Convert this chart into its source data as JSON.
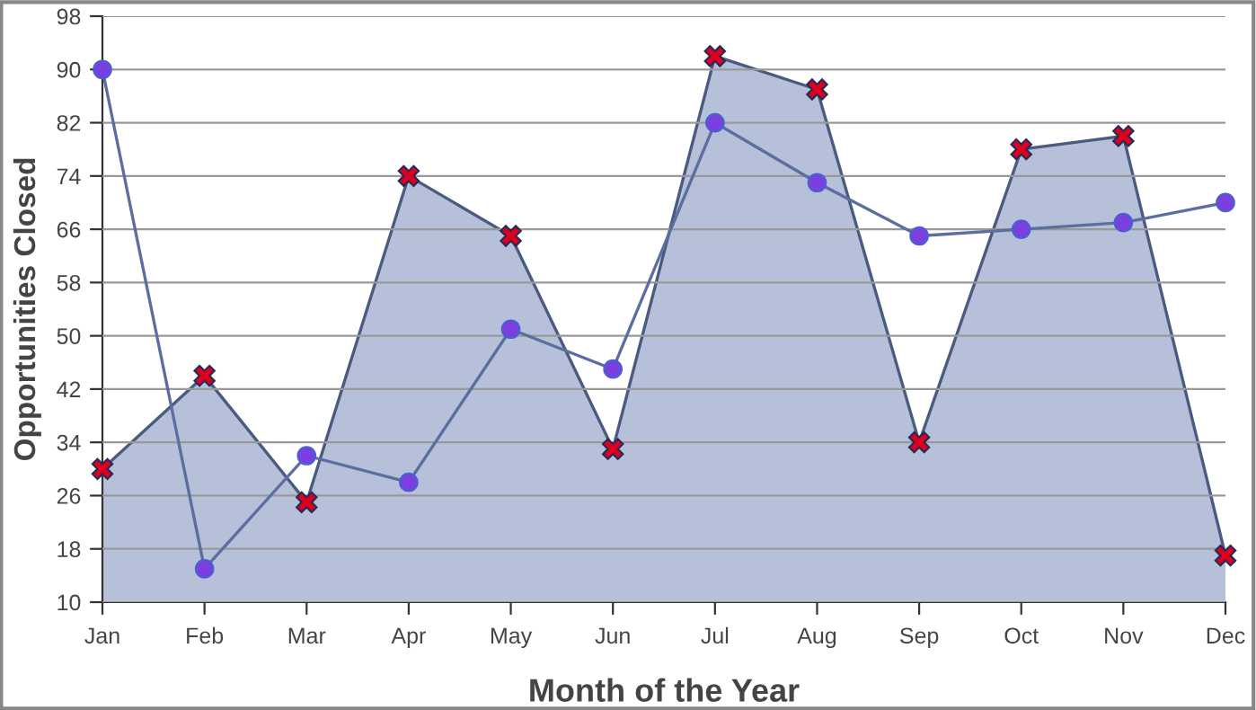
{
  "chart_data": {
    "type": "area",
    "xlabel": "Month of the Year",
    "ylabel": "Opportunities Closed",
    "categories": [
      "Jan",
      "Feb",
      "Mar",
      "Apr",
      "May",
      "Jun",
      "Jul",
      "Aug",
      "Sep",
      "Oct",
      "Nov",
      "Dec"
    ],
    "series": [
      {
        "color": "#b6c1d9",
        "marker": "cross",
        "values": [
          30,
          44,
          25,
          74,
          65,
          33,
          92,
          87,
          34,
          78,
          80,
          17
        ]
      },
      {
        "type": "line",
        "color": "#5a6fa0",
        "marker": "circle",
        "values": [
          90,
          15,
          32,
          28,
          51,
          45,
          82,
          73,
          65,
          66,
          67,
          70
        ]
      }
    ],
    "ylim": [
      10,
      98
    ],
    "yticks": [
      10,
      18,
      26,
      34,
      42,
      50,
      58,
      66,
      74,
      82,
      90,
      98
    ],
    "grid": "y",
    "legend": false,
    "line_style": "solid"
  }
}
